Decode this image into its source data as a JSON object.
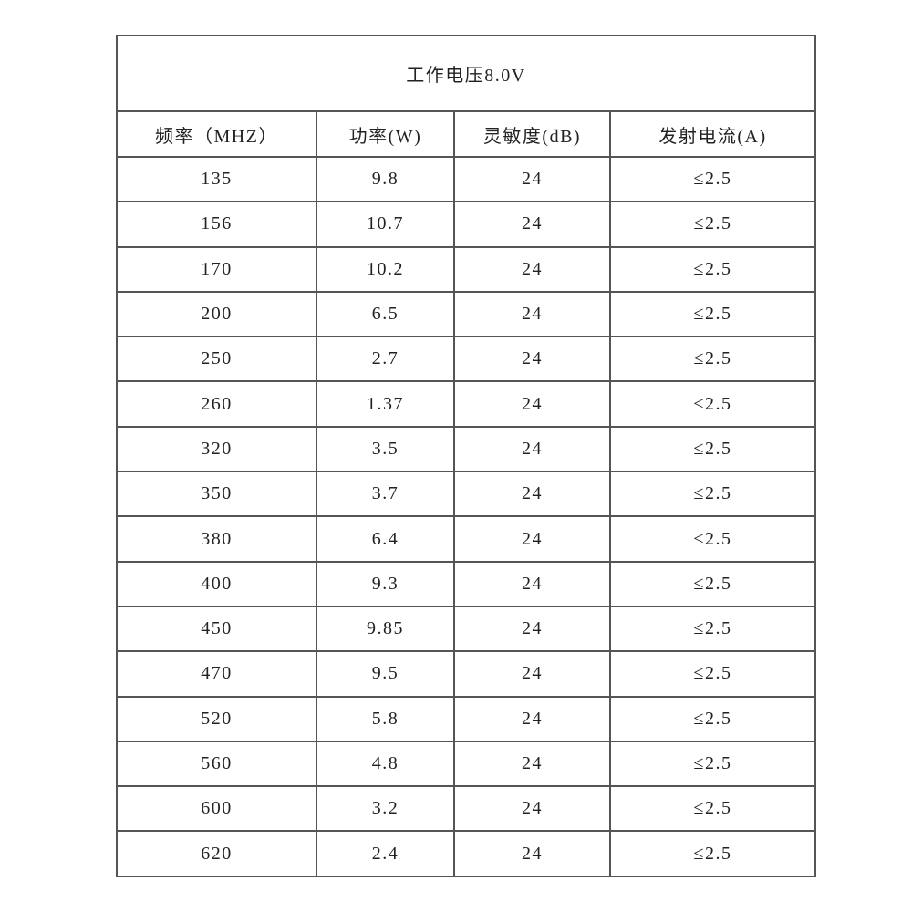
{
  "table": {
    "title": "工作电压8.0V",
    "headers": [
      "频率（MHZ）",
      "功率(W)",
      "灵敏度(dB)",
      "发射电流(A)"
    ],
    "rows": [
      [
        "135",
        "9.8",
        "24",
        "≤2.5"
      ],
      [
        "156",
        "10.7",
        "24",
        "≤2.5"
      ],
      [
        "170",
        "10.2",
        "24",
        "≤2.5"
      ],
      [
        "200",
        "6.5",
        "24",
        "≤2.5"
      ],
      [
        "250",
        "2.7",
        "24",
        "≤2.5"
      ],
      [
        "260",
        "1.37",
        "24",
        "≤2.5"
      ],
      [
        "320",
        "3.5",
        "24",
        "≤2.5"
      ],
      [
        "350",
        "3.7",
        "24",
        "≤2.5"
      ],
      [
        "380",
        "6.4",
        "24",
        "≤2.5"
      ],
      [
        "400",
        "9.3",
        "24",
        "≤2.5"
      ],
      [
        "450",
        "9.85",
        "24",
        "≤2.5"
      ],
      [
        "470",
        "9.5",
        "24",
        "≤2.5"
      ],
      [
        "520",
        "5.8",
        "24",
        "≤2.5"
      ],
      [
        "560",
        "4.8",
        "24",
        "≤2.5"
      ],
      [
        "600",
        "3.2",
        "24",
        "≤2.5"
      ],
      [
        "620",
        "2.4",
        "24",
        "≤2.5"
      ]
    ]
  }
}
